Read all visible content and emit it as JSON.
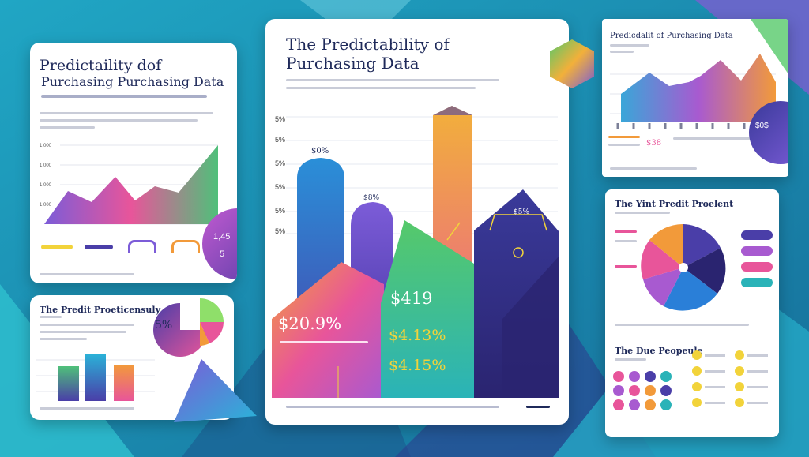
{
  "colors": {
    "background": "#1b8fb0",
    "navy": "#1f2a5a",
    "purple": "#4a3ea8",
    "pink": "#e8559a",
    "orange": "#f29a3a",
    "teal": "#2ab3b8",
    "yellow": "#f2d33a"
  },
  "card_left_top": {
    "title_line1": "Predictaility dof",
    "title_line2": "Purchasing Purchasing Data",
    "badge": "1,45",
    "badge2": "5"
  },
  "card_left_bottom": {
    "title": "The Predit Proeticensuly",
    "pie_value": "5%"
  },
  "card_center": {
    "title_line1": "The Predictability of",
    "title_line2": "Purchasing Data",
    "y_ticks": [
      "5%",
      "5%",
      "5%",
      "5%",
      "5%",
      "5%"
    ],
    "bar_label_1": "$0%",
    "bar_label_2": "$8%",
    "arrow_label": "$5%",
    "value_1": "$20.9%",
    "value_2": "$419",
    "value_3": "$4.13%",
    "value_4": "$4.15%"
  },
  "card_right_top": {
    "title": "Predicdalit of Purchasing Data",
    "badge": "$0$",
    "value": "$38"
  },
  "card_right_bottom": {
    "title": "The Yint Predit Proelent",
    "subtitle": "The Due Peopeule"
  }
}
